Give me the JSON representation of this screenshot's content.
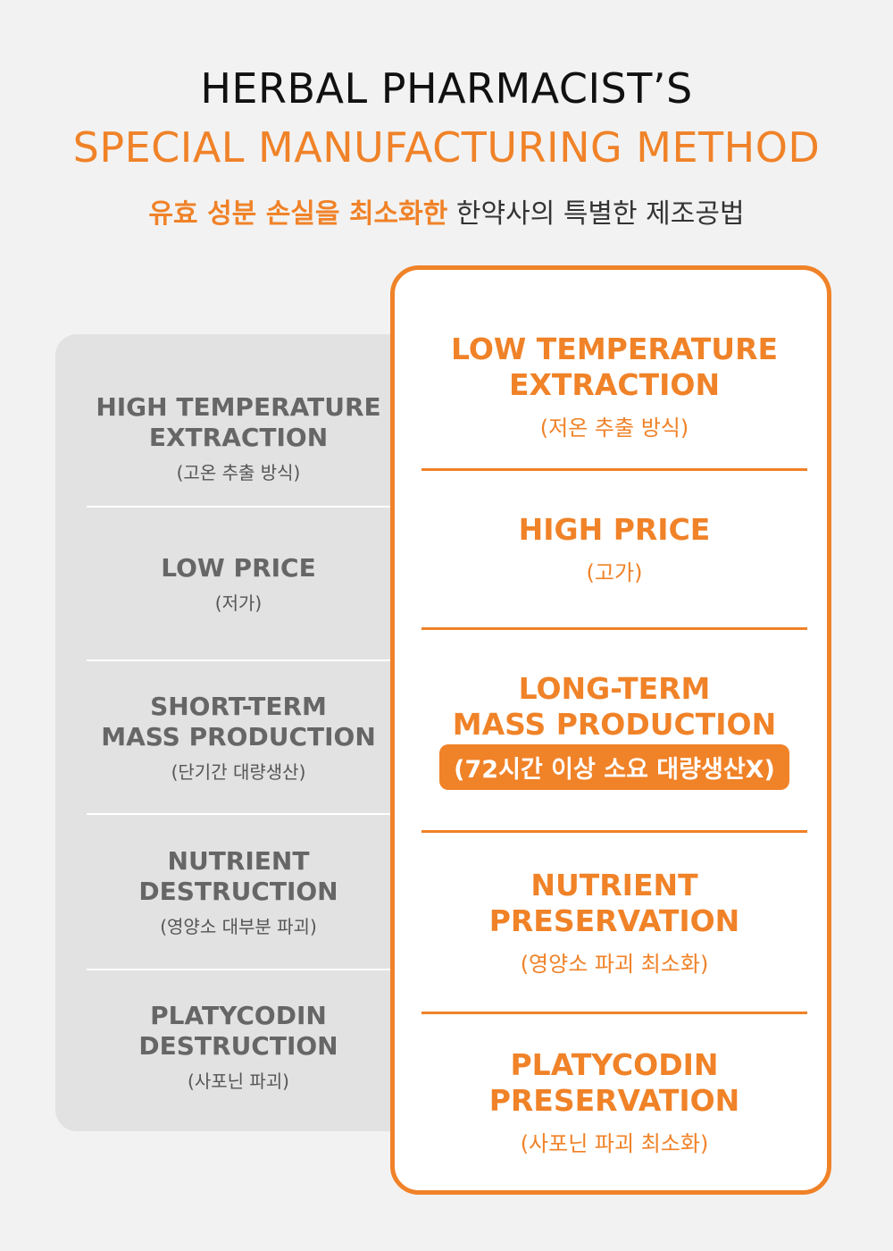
{
  "header": {
    "line1": "HERBAL PHARMACIST’S",
    "line2": "SPECIAL MANUFACTURING METHOD",
    "subtitle_highlight": "유효 성분 손실을 최소화한",
    "subtitle_rest": " 한약사의 특별한 제조공법"
  },
  "colors": {
    "accent": "#f08228",
    "left_panel": "#e2e2e2",
    "background": "#f2f2f2"
  },
  "conventional": [
    {
      "en": "HIGH TEMPERATURE\nEXTRACTION",
      "ko": "(고온 추출 방식)"
    },
    {
      "en": "LOW PRICE",
      "ko": "(저가)"
    },
    {
      "en": "SHORT-TERM\nMASS PRODUCTION",
      "ko": "(단기간 대량생산)"
    },
    {
      "en": "NUTRIENT\nDESTRUCTION",
      "ko": "(영양소 대부분 파괴)"
    },
    {
      "en": "PLATYCODIN\nDESTRUCTION",
      "ko": "(사포닌 파괴)"
    }
  ],
  "special": [
    {
      "en": "LOW TEMPERATURE\nEXTRACTION",
      "ko": "(저온 추출 방식)"
    },
    {
      "en": "HIGH PRICE",
      "ko": "(고가)"
    },
    {
      "en": "LONG-TERM\nMASS PRODUCTION",
      "ko": "(72시간 이상 소요 대량생산X)"
    },
    {
      "en": "NUTRIENT\nPRESERVATION",
      "ko": "(영양소 파괴 최소화)"
    },
    {
      "en": "PLATYCODIN\nPRESERVATION",
      "ko": "(사포닌 파괴 최소화)"
    }
  ]
}
